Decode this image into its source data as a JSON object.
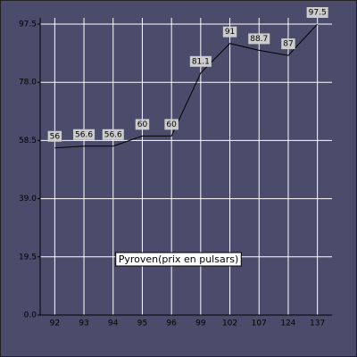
{
  "chart_data": {
    "type": "line",
    "categories": [
      "92",
      "93",
      "94",
      "95",
      "96",
      "99",
      "102",
      "107",
      "124",
      "137"
    ],
    "series": [
      {
        "name": "Pyroven(prix en pulsars)",
        "color": "#000000",
        "values": [
          56,
          56.6,
          56.6,
          60,
          60,
          81.1,
          91,
          88.7,
          87,
          97.5
        ]
      }
    ],
    "ylim": [
      0,
      97.5
    ],
    "yticks": [
      {
        "value": 0,
        "label": "0.0"
      },
      19.5,
      {
        "value": 39,
        "label": "39.0"
      },
      58.5,
      {
        "value": 78,
        "label": "78.0"
      },
      97.5
    ],
    "grid": true
  }
}
